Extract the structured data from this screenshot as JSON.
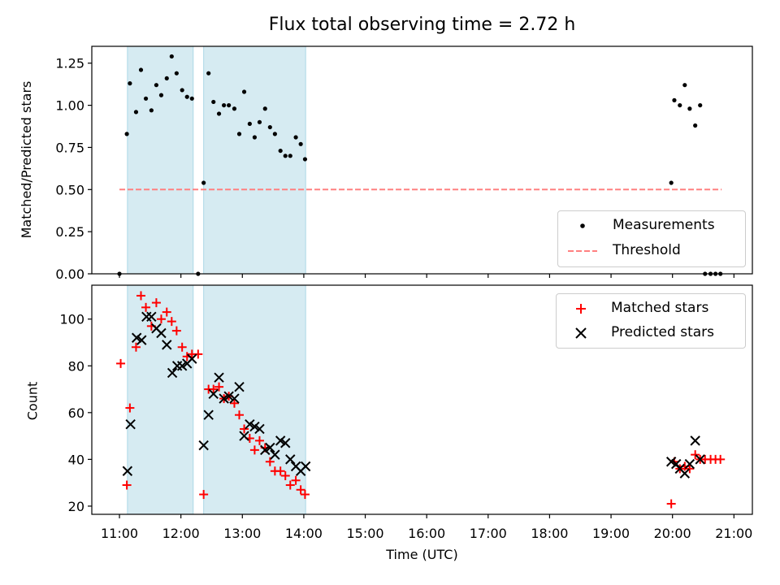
{
  "title": "Flux total observing time = 2.72 h",
  "chart_data": [
    {
      "type": "scatter",
      "panel": "top",
      "ylabel": "Matched/Predicted stars",
      "xlim": [
        10.55,
        21.3
      ],
      "ylim": [
        0,
        1.35
      ],
      "yticks": [
        0.0,
        0.25,
        0.5,
        0.75,
        1.0,
        1.25
      ],
      "ytick_labels": [
        "0.00",
        "0.25",
        "0.50",
        "0.75",
        "1.00",
        "1.25"
      ],
      "shaded_intervals": [
        [
          11.13,
          12.2
        ],
        [
          12.37,
          14.03
        ]
      ],
      "threshold": {
        "name": "Threshold",
        "value": 0.5,
        "x_range": [
          11.0,
          20.8
        ],
        "color": "#ff8080",
        "style": "dashed"
      },
      "series": [
        {
          "name": "Measurements",
          "color": "#000000",
          "marker": "dot",
          "x": [
            11.0,
            11.12,
            11.17,
            11.27,
            11.35,
            11.43,
            11.52,
            11.6,
            11.68,
            11.77,
            11.85,
            11.93,
            12.02,
            12.1,
            12.18,
            12.28,
            12.37,
            12.45,
            12.53,
            12.62,
            12.7,
            12.78,
            12.87,
            12.95,
            13.03,
            13.12,
            13.2,
            13.28,
            13.37,
            13.45,
            13.53,
            13.62,
            13.7,
            13.78,
            13.87,
            13.95,
            14.02,
            19.98,
            20.03,
            20.12,
            20.2,
            20.28,
            20.37,
            20.45,
            20.53,
            20.62,
            20.7,
            20.78
          ],
          "y": [
            0.0,
            0.83,
            1.13,
            0.96,
            1.21,
            1.04,
            0.97,
            1.12,
            1.06,
            1.16,
            1.29,
            1.19,
            1.09,
            1.05,
            1.04,
            0.0,
            0.54,
            1.19,
            1.02,
            0.95,
            1.0,
            1.0,
            0.98,
            0.83,
            1.08,
            0.89,
            0.81,
            0.9,
            0.98,
            0.87,
            0.83,
            0.73,
            0.7,
            0.7,
            0.81,
            0.77,
            0.68,
            0.54,
            1.03,
            1.0,
            1.12,
            0.98,
            0.88,
            1.0,
            0.0,
            0.0,
            0.0,
            0.0
          ]
        }
      ],
      "legend": {
        "position": "lower right",
        "entries": [
          "Measurements",
          "Threshold"
        ]
      }
    },
    {
      "type": "scatter",
      "panel": "bottom",
      "xlabel": "Time (UTC)",
      "ylabel": "Count",
      "xlim": [
        10.55,
        21.3
      ],
      "ylim": [
        16.5,
        114.5
      ],
      "yticks": [
        20,
        40,
        60,
        80,
        100
      ],
      "xticks": [
        11,
        12,
        13,
        14,
        15,
        16,
        17,
        18,
        19,
        20,
        21
      ],
      "xtick_labels": [
        "11:00",
        "12:00",
        "13:00",
        "14:00",
        "15:00",
        "16:00",
        "17:00",
        "18:00",
        "19:00",
        "20:00",
        "21:00"
      ],
      "shaded_intervals": [
        [
          11.13,
          12.2
        ],
        [
          12.37,
          14.03
        ]
      ],
      "series": [
        {
          "name": "Matched stars",
          "color": "#ff0000",
          "marker": "plus",
          "x": [
            11.02,
            11.12,
            11.17,
            11.27,
            11.35,
            11.43,
            11.52,
            11.6,
            11.68,
            11.77,
            11.85,
            11.93,
            12.02,
            12.1,
            12.18,
            12.28,
            12.37,
            12.45,
            12.53,
            12.62,
            12.7,
            12.78,
            12.87,
            12.95,
            13.03,
            13.12,
            13.2,
            13.28,
            13.37,
            13.45,
            13.53,
            13.62,
            13.7,
            13.78,
            13.87,
            13.95,
            14.02,
            19.98,
            20.03,
            20.12,
            20.2,
            20.28,
            20.37,
            20.45,
            20.53,
            20.62,
            20.7,
            20.78
          ],
          "y": [
            81,
            29,
            62,
            88,
            110,
            105,
            97,
            107,
            100,
            103,
            99,
            95,
            88,
            84,
            85,
            85,
            25,
            70,
            70,
            71,
            66,
            67,
            64,
            59,
            53,
            49,
            44,
            48,
            45,
            39,
            35,
            35,
            33,
            29,
            31,
            27,
            25,
            21,
            39,
            36,
            37,
            36,
            42,
            40,
            40,
            40,
            40,
            40
          ]
        },
        {
          "name": "Predicted stars",
          "color": "#000000",
          "marker": "x",
          "x": [
            11.13,
            11.18,
            11.28,
            11.36,
            11.44,
            11.52,
            11.6,
            11.68,
            11.77,
            11.86,
            11.94,
            12.02,
            12.1,
            12.18,
            12.37,
            12.45,
            12.53,
            12.62,
            12.7,
            12.78,
            12.87,
            12.95,
            13.03,
            13.12,
            13.2,
            13.28,
            13.37,
            13.45,
            13.53,
            13.62,
            13.7,
            13.78,
            13.87,
            13.95,
            14.03,
            19.98,
            20.06,
            20.12,
            20.2,
            20.28,
            20.37,
            20.45
          ],
          "y": [
            35,
            55,
            92,
            91,
            101,
            101,
            96,
            94,
            89,
            77,
            80,
            80,
            81,
            83,
            46,
            59,
            68,
            75,
            66,
            67,
            66,
            71,
            50,
            55,
            54,
            53,
            44,
            45,
            42,
            48,
            47,
            40,
            37,
            35,
            37,
            39,
            38,
            36,
            34,
            38,
            48,
            40
          ]
        }
      ],
      "legend": {
        "position": "upper right",
        "entries": [
          "Matched stars",
          "Predicted stars"
        ]
      }
    }
  ]
}
